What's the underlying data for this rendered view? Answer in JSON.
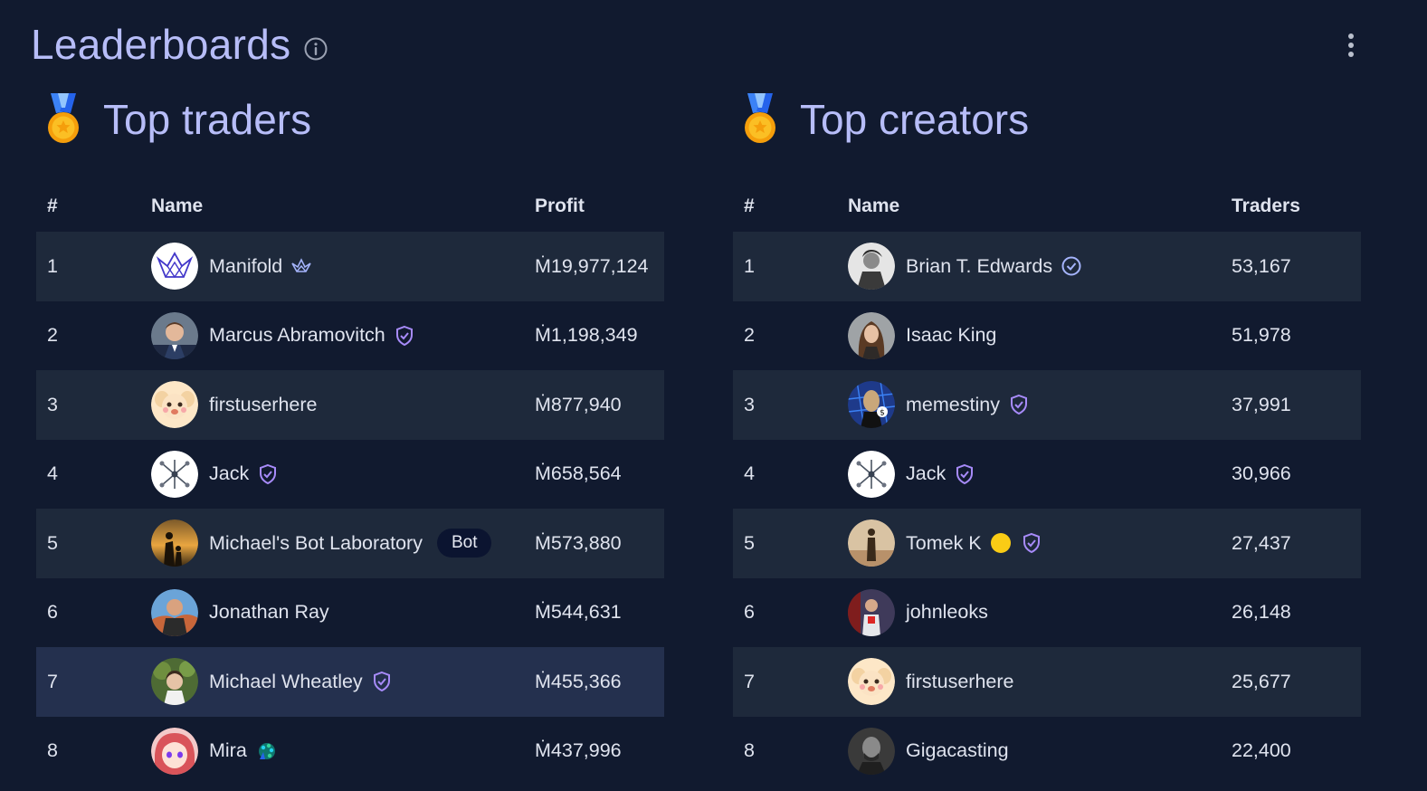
{
  "page": {
    "title": "Leaderboards"
  },
  "traders": {
    "title": "Top traders",
    "columns": {
      "rank": "#",
      "name": "Name",
      "value": "Profit"
    },
    "rows": [
      {
        "rank": "1",
        "name": "Manifold",
        "value": "Ṁ19,977,124",
        "badge": "crane-icon"
      },
      {
        "rank": "2",
        "name": "Marcus Abramovitch",
        "value": "Ṁ1,198,349",
        "badge": "verified-shield-icon"
      },
      {
        "rank": "3",
        "name": "firstuserhere",
        "value": "Ṁ877,940",
        "badge": ""
      },
      {
        "rank": "4",
        "name": "Jack",
        "value": "Ṁ658,564",
        "badge": "verified-shield-icon"
      },
      {
        "rank": "5",
        "name": "Michael's Bot Laboratory",
        "value": "Ṁ573,880",
        "badge": "",
        "tag": "Bot"
      },
      {
        "rank": "6",
        "name": "Jonathan Ray",
        "value": "Ṁ544,631",
        "badge": ""
      },
      {
        "rank": "7",
        "name": "Michael Wheatley",
        "value": "Ṁ455,366",
        "badge": "verified-shield-icon"
      },
      {
        "rank": "8",
        "name": "Mira",
        "value": "Ṁ437,996",
        "badge": "peacock-icon"
      }
    ]
  },
  "creators": {
    "title": "Top creators",
    "columns": {
      "rank": "#",
      "name": "Name",
      "value": "Traders"
    },
    "rows": [
      {
        "rank": "1",
        "name": "Brian T. Edwards",
        "value": "53,167",
        "badge": "verified-check-icon"
      },
      {
        "rank": "2",
        "name": "Isaac King",
        "value": "51,978",
        "badge": ""
      },
      {
        "rank": "3",
        "name": "memestiny",
        "value": "37,991",
        "badge": "verified-shield-icon"
      },
      {
        "rank": "4",
        "name": "Jack",
        "value": "30,966",
        "badge": "verified-shield-icon"
      },
      {
        "rank": "5",
        "name": "Tomek K",
        "value": "27,437",
        "badge": "verified-shield-icon",
        "extra": "yellow-circle-icon"
      },
      {
        "rank": "6",
        "name": "johnleoks",
        "value": "26,148",
        "badge": ""
      },
      {
        "rank": "7",
        "name": "firstuserhere",
        "value": "25,677",
        "badge": ""
      },
      {
        "rank": "8",
        "name": "Gigacasting",
        "value": "22,400",
        "badge": ""
      }
    ]
  },
  "colors": {
    "background": "#111a2f",
    "title": "#b7bdf8",
    "row_shade": "#1e293b",
    "row_highlight": "#24304e",
    "badge": "#a78bfa"
  }
}
